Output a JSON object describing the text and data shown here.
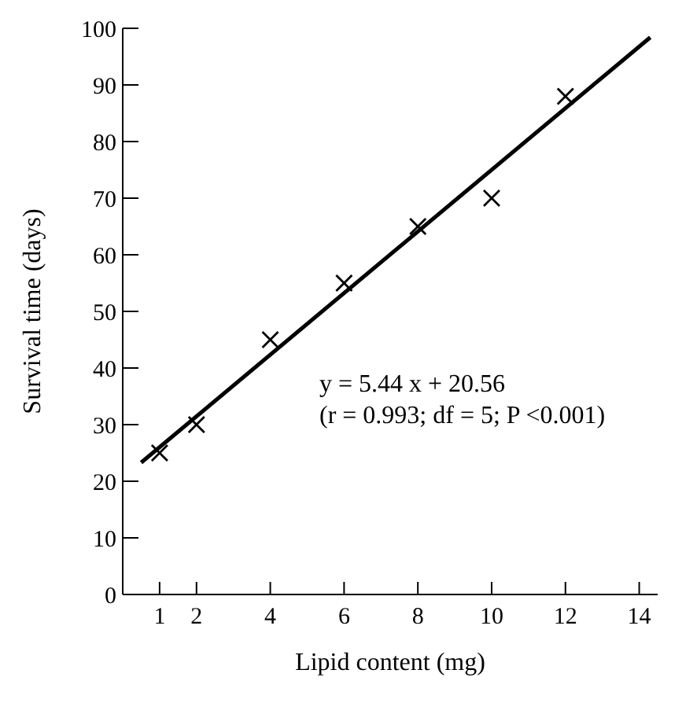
{
  "chart_data": {
    "type": "scatter",
    "xlabel": "Lipid content (mg)",
    "ylabel": "Survival time (days)",
    "xlim": [
      0,
      14.5
    ],
    "xticks": [
      1,
      2,
      4,
      6,
      8,
      10,
      12,
      14
    ],
    "ylim": [
      0,
      100
    ],
    "yticks": [
      0,
      10,
      20,
      30,
      40,
      50,
      60,
      70,
      80,
      90,
      100
    ],
    "grid": false,
    "marker": "cross",
    "series": [
      {
        "color": "#000000",
        "x": [
          1,
          2,
          4,
          6,
          8,
          10,
          12
        ],
        "values": [
          25,
          30,
          45,
          55,
          65,
          70,
          88
        ]
      },
      {
        "type": "line",
        "color": "#000000",
        "x": [
          0.5,
          14.3
        ],
        "values": [
          23.3,
          98.4
        ],
        "marker": "none"
      }
    ],
    "annotations": [
      "y = 5.44 x + 20.56",
      "(r = 0.993; df = 5; P <0.001)"
    ]
  }
}
